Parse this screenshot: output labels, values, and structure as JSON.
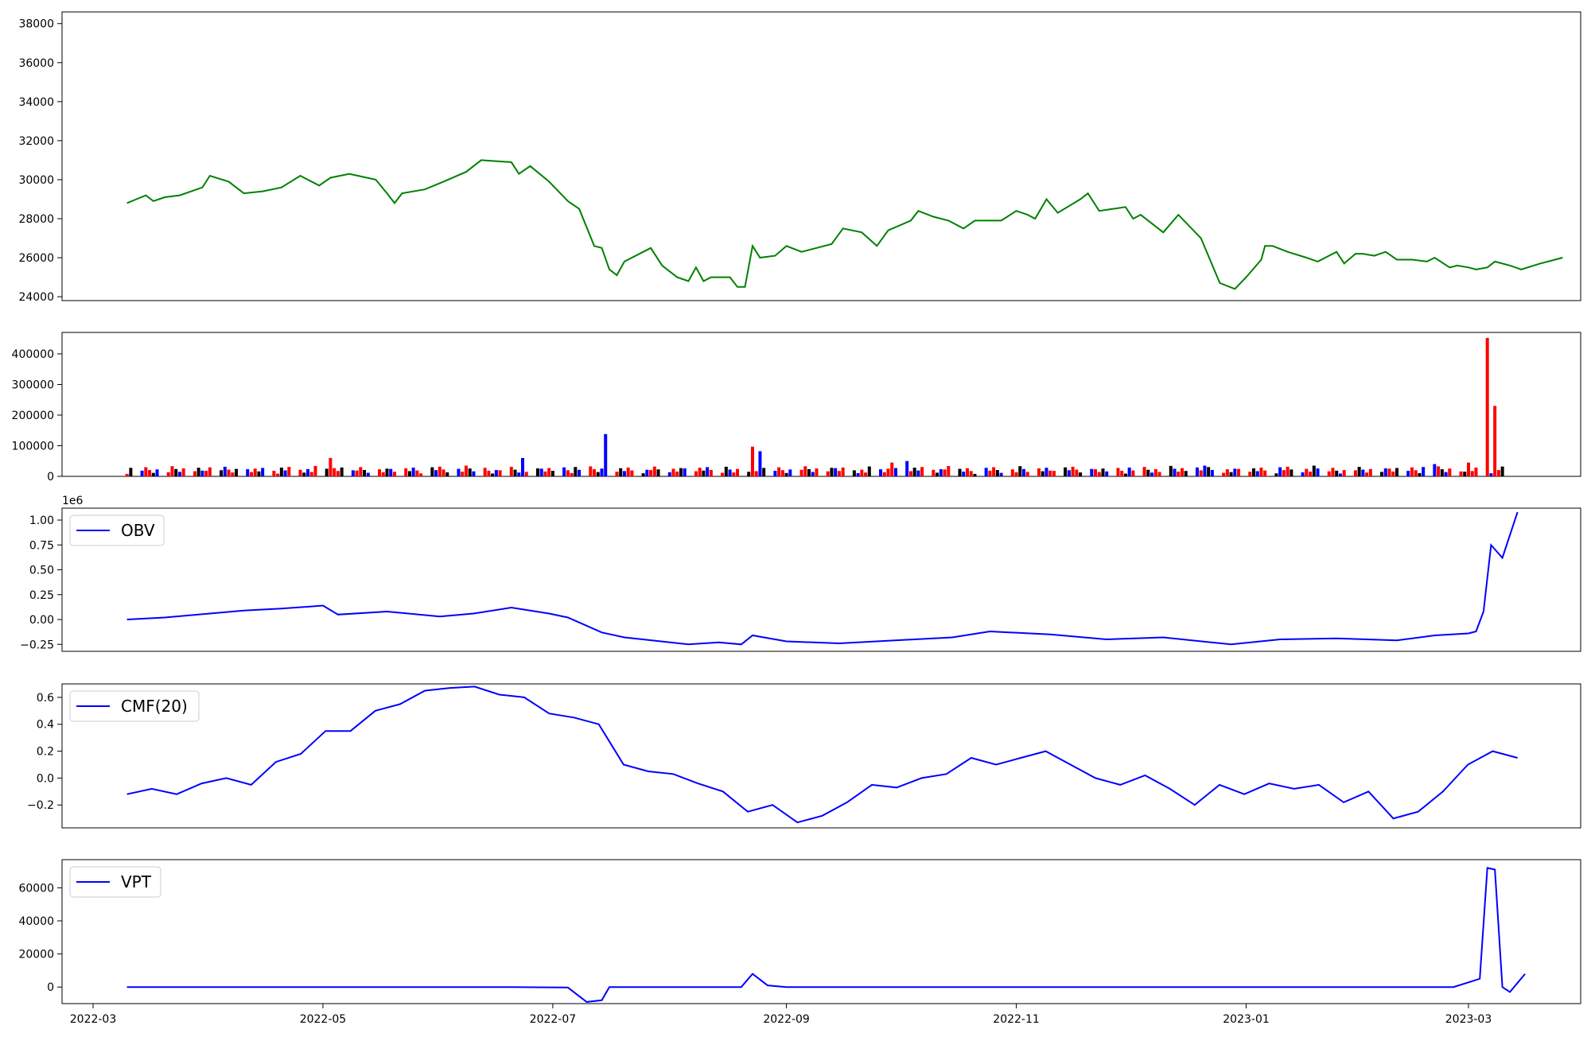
{
  "chart_data": [
    {
      "type": "line",
      "panel": "price",
      "color": "#008000",
      "ylim": [
        23800,
        38600
      ],
      "yticks": [
        "24000",
        "26000",
        "28000",
        "30000",
        "32000",
        "34000",
        "36000",
        "38000"
      ],
      "yticks_values": [
        24000,
        26000,
        28000,
        30000,
        32000,
        34000,
        36000,
        38000
      ],
      "series": [
        {
          "values_daily_from": "2022-03-10",
          "points": [
            [
              "2022-03-10",
              28800
            ],
            [
              "2022-03-15",
              29200
            ],
            [
              "2022-03-17",
              28900
            ],
            [
              "2022-03-20",
              29100
            ],
            [
              "2022-03-24",
              29200
            ],
            [
              "2022-03-30",
              29600
            ],
            [
              "2022-04-01",
              30200
            ],
            [
              "2022-04-06",
              29900
            ],
            [
              "2022-04-10",
              29300
            ],
            [
              "2022-04-15",
              29400
            ],
            [
              "2022-04-20",
              29600
            ],
            [
              "2022-04-25",
              30200
            ],
            [
              "2022-04-30",
              29700
            ],
            [
              "2022-05-03",
              30100
            ],
            [
              "2022-05-08",
              30300
            ],
            [
              "2022-05-15",
              30000
            ],
            [
              "2022-05-18",
              29300
            ],
            [
              "2022-05-20",
              28800
            ],
            [
              "2022-05-22",
              29300
            ],
            [
              "2022-05-28",
              29500
            ],
            [
              "2022-06-02",
              29900
            ],
            [
              "2022-06-08",
              30400
            ],
            [
              "2022-06-12",
              31000
            ],
            [
              "2022-06-20",
              30900
            ],
            [
              "2022-06-22",
              30300
            ],
            [
              "2022-06-25",
              30700
            ],
            [
              "2022-06-30",
              29900
            ],
            [
              "2022-07-05",
              28900
            ],
            [
              "2022-07-08",
              28500
            ],
            [
              "2022-07-12",
              26600
            ],
            [
              "2022-07-14",
              26500
            ],
            [
              "2022-07-16",
              25400
            ],
            [
              "2022-07-18",
              25100
            ],
            [
              "2022-07-20",
              25800
            ],
            [
              "2022-07-25",
              26300
            ],
            [
              "2022-07-27",
              26500
            ],
            [
              "2022-07-30",
              25600
            ],
            [
              "2022-08-03",
              25000
            ],
            [
              "2022-08-06",
              24800
            ],
            [
              "2022-08-08",
              25500
            ],
            [
              "2022-08-10",
              24800
            ],
            [
              "2022-08-12",
              25000
            ],
            [
              "2022-08-17",
              25000
            ],
            [
              "2022-08-19",
              24500
            ],
            [
              "2022-08-21",
              24500
            ],
            [
              "2022-08-23",
              26600
            ],
            [
              "2022-08-25",
              26000
            ],
            [
              "2022-08-29",
              26100
            ],
            [
              "2022-09-01",
              26600
            ],
            [
              "2022-09-05",
              26300
            ],
            [
              "2022-09-09",
              26500
            ],
            [
              "2022-09-13",
              26700
            ],
            [
              "2022-09-16",
              27500
            ],
            [
              "2022-09-21",
              27300
            ],
            [
              "2022-09-25",
              26600
            ],
            [
              "2022-09-28",
              27400
            ],
            [
              "2022-10-04",
              27900
            ],
            [
              "2022-10-06",
              28400
            ],
            [
              "2022-10-10",
              28100
            ],
            [
              "2022-10-14",
              27900
            ],
            [
              "2022-10-18",
              27500
            ],
            [
              "2022-10-21",
              27900
            ],
            [
              "2022-10-25",
              27900
            ],
            [
              "2022-10-28",
              27900
            ],
            [
              "2022-11-01",
              28400
            ],
            [
              "2022-11-04",
              28200
            ],
            [
              "2022-11-06",
              28000
            ],
            [
              "2022-11-09",
              29000
            ],
            [
              "2022-11-12",
              28300
            ],
            [
              "2022-11-18",
              29000
            ],
            [
              "2022-11-20",
              29300
            ],
            [
              "2022-11-23",
              28400
            ],
            [
              "2022-11-30",
              28600
            ],
            [
              "2022-12-02",
              28000
            ],
            [
              "2022-12-04",
              28200
            ],
            [
              "2022-12-10",
              27300
            ],
            [
              "2022-12-14",
              28200
            ],
            [
              "2022-12-20",
              27000
            ],
            [
              "2022-12-25",
              24700
            ],
            [
              "2022-12-29",
              24400
            ],
            [
              "2023-01-01",
              25000
            ],
            [
              "2023-01-05",
              25900
            ],
            [
              "2023-01-06",
              26600
            ],
            [
              "2023-01-08",
              26600
            ],
            [
              "2023-01-12",
              26300
            ],
            [
              "2023-01-17",
              26000
            ],
            [
              "2023-01-20",
              25800
            ],
            [
              "2023-01-22",
              26000
            ],
            [
              "2023-01-25",
              26300
            ],
            [
              "2023-01-27",
              25700
            ],
            [
              "2023-01-30",
              26200
            ],
            [
              "2023-02-01",
              26200
            ],
            [
              "2023-02-04",
              26100
            ],
            [
              "2023-02-07",
              26300
            ],
            [
              "2023-02-10",
              25900
            ],
            [
              "2023-02-14",
              25900
            ],
            [
              "2023-02-18",
              25800
            ],
            [
              "2023-02-20",
              26000
            ],
            [
              "2023-02-24",
              25500
            ],
            [
              "2023-02-26",
              25600
            ],
            [
              "2023-03-01",
              25500
            ],
            [
              "2023-03-03",
              25400
            ],
            [
              "2023-03-06",
              25500
            ],
            [
              "2023-03-08",
              25800
            ],
            [
              "2023-03-12",
              25600
            ],
            [
              "2023-03-15",
              25400
            ],
            [
              "2023-03-20",
              25700
            ],
            [
              "2023-03-26",
              26000
            ]
          ],
          "note": ""
        }
      ]
    }
  ]
}
